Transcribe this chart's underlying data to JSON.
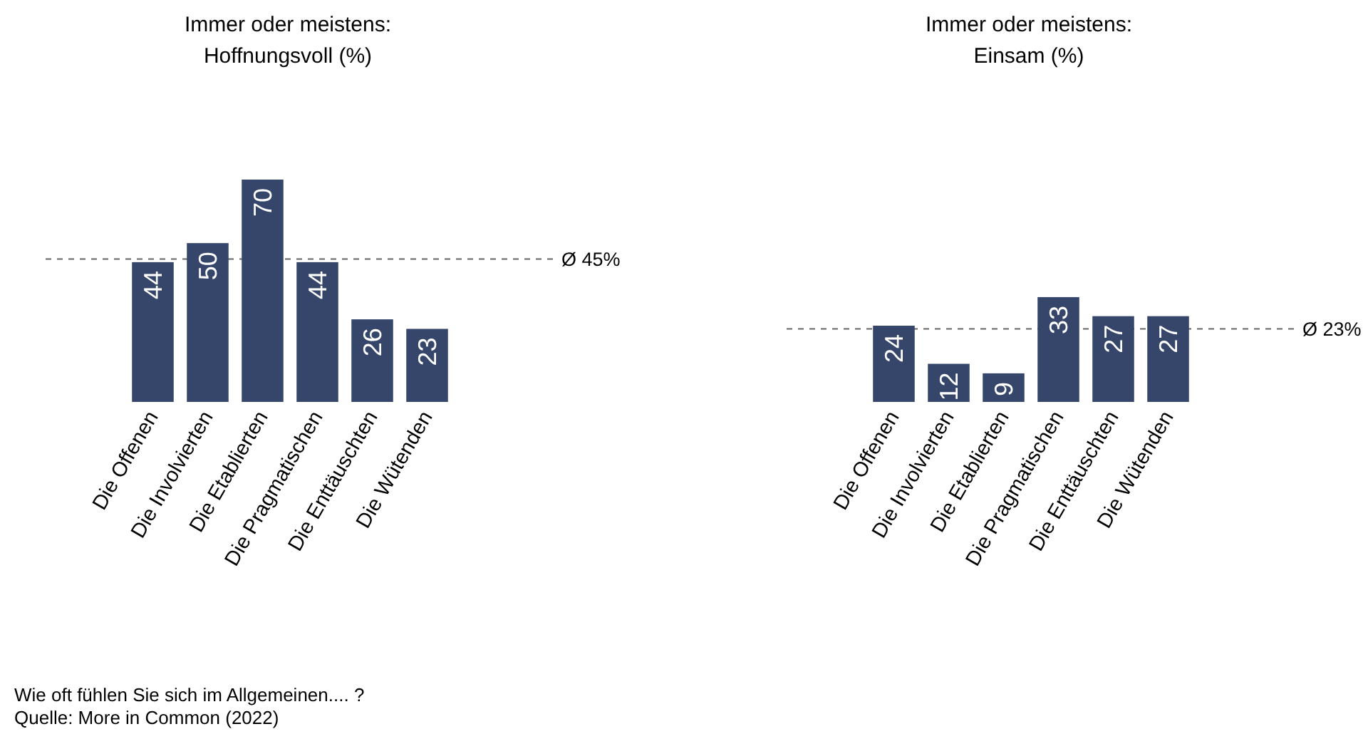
{
  "chart_data": [
    {
      "type": "bar",
      "title": "Immer oder meistens:\nHoffnungsvoll (%)",
      "categories": [
        "Die Offenen",
        "Die Involvierten",
        "Die Etablierten",
        "Die Pragmatischen",
        "Die Enttäuschten",
        "Die Wütenden"
      ],
      "values": [
        44,
        50,
        70,
        44,
        26,
        23
      ],
      "color": "#35466a",
      "data_labels": true,
      "ref_lines": [
        {
          "axis": "y",
          "value": 45,
          "label": "Ø 45%",
          "color": "#666666",
          "line_style": "dashed"
        }
      ],
      "annotations": [
        "Wie oft fühlen Sie sich im Allgemeinen.... ?",
        "Quelle: More in Common (2022)"
      ]
    },
    {
      "type": "bar",
      "title": "Immer oder meistens:\nEinsam (%)",
      "categories": [
        "Die Offenen",
        "Die Involvierten",
        "Die Etablierten",
        "Die Pragmatischen",
        "Die Enttäuschten",
        "Die Wütenden"
      ],
      "values": [
        24,
        12,
        9,
        33,
        27,
        27
      ],
      "color": "#35466a",
      "data_labels": true,
      "ref_lines": [
        {
          "axis": "y",
          "value": 23,
          "label": "Ø 23%",
          "color": "#666666",
          "line_style": "dashed"
        }
      ]
    }
  ]
}
